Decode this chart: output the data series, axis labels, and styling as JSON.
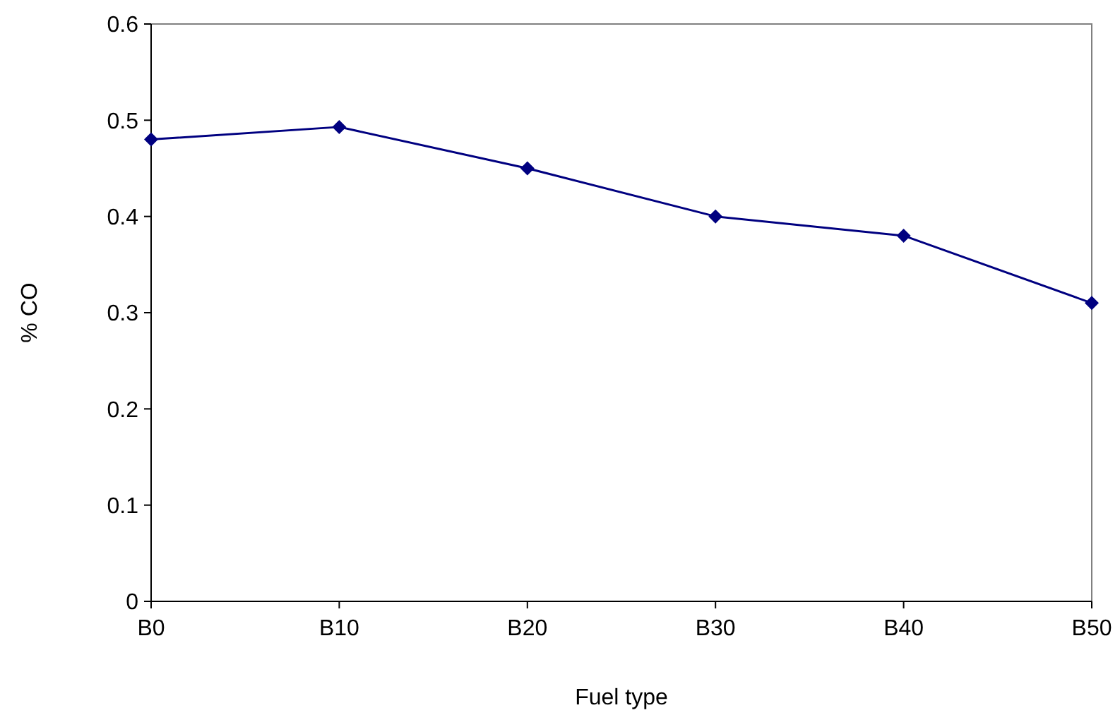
{
  "chart_data": {
    "type": "line",
    "xlabel": "Fuel type",
    "ylabel": "% CO",
    "categories": [
      "B0",
      "B10",
      "B20",
      "B30",
      "B40",
      "B50"
    ],
    "series": [
      {
        "color": "#000080",
        "values": [
          0.48,
          0.493,
          0.45,
          0.4,
          0.38,
          0.31
        ]
      }
    ],
    "ylim": [
      0,
      0.6
    ],
    "yticks": [
      {
        "value": 0,
        "label": "0"
      },
      0.1,
      0.2,
      0.3,
      0.4,
      0.5,
      0.6
    ],
    "grid": false,
    "marker": "diamond",
    "line_style": "solid"
  }
}
